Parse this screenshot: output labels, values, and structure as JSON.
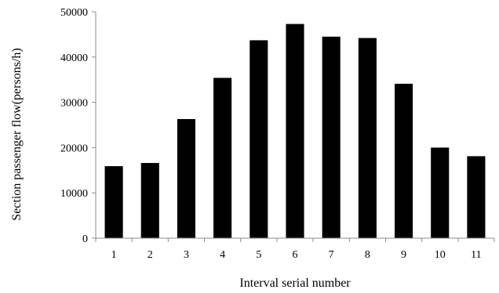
{
  "chart_data": {
    "type": "bar",
    "categories": [
      "1",
      "2",
      "3",
      "4",
      "5",
      "6",
      "7",
      "8",
      "9",
      "10",
      "11"
    ],
    "values": [
      15900,
      16600,
      26300,
      35400,
      43700,
      47300,
      44500,
      44200,
      34100,
      20000,
      18100
    ],
    "title": "",
    "xlabel": "Interval serial number",
    "ylabel": "Section passenger flow(persons/h)",
    "ylim": [
      0,
      50000
    ],
    "yticks": [
      "0",
      "10000",
      "20000",
      "30000",
      "40000",
      "50000"
    ],
    "grid": false,
    "legend": "none",
    "bar_color": "#000000",
    "axis_color": "#8c8c8c"
  }
}
